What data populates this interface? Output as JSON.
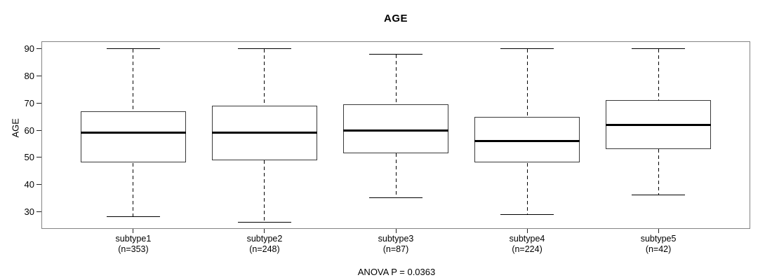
{
  "title": "AGE",
  "y_axis_label": "AGE",
  "footer": "ANOVA P = 0.0363",
  "chart_data": {
    "type": "boxplot",
    "title": "AGE",
    "xlabel": "",
    "ylabel": "AGE",
    "annotation": "ANOVA P = 0.0363",
    "yticks": [
      30,
      40,
      50,
      60,
      70,
      80,
      90
    ],
    "ylim": [
      23.6,
      92.8
    ],
    "grid": false,
    "legend": "none",
    "groups": [
      {
        "label": "subtype1",
        "n_label": "(n=353)",
        "n": 353,
        "whisker_low": 28,
        "q1": 48,
        "median": 59,
        "q3": 67,
        "whisker_high": 90
      },
      {
        "label": "subtype2",
        "n_label": "(n=248)",
        "n": 248,
        "whisker_low": 26,
        "q1": 49,
        "median": 59,
        "q3": 69,
        "whisker_high": 90
      },
      {
        "label": "subtype3",
        "n_label": "(n=87)",
        "n": 87,
        "whisker_low": 35,
        "q1": 51.5,
        "median": 60,
        "q3": 69.5,
        "whisker_high": 88
      },
      {
        "label": "subtype4",
        "n_label": "(n=224)",
        "n": 224,
        "whisker_low": 29,
        "q1": 48,
        "median": 56,
        "q3": 65,
        "whisker_high": 90
      },
      {
        "label": "subtype5",
        "n_label": "(n=42)",
        "n": 42,
        "whisker_low": 36,
        "q1": 53,
        "median": 62,
        "q3": 71,
        "whisker_high": 90
      }
    ]
  }
}
